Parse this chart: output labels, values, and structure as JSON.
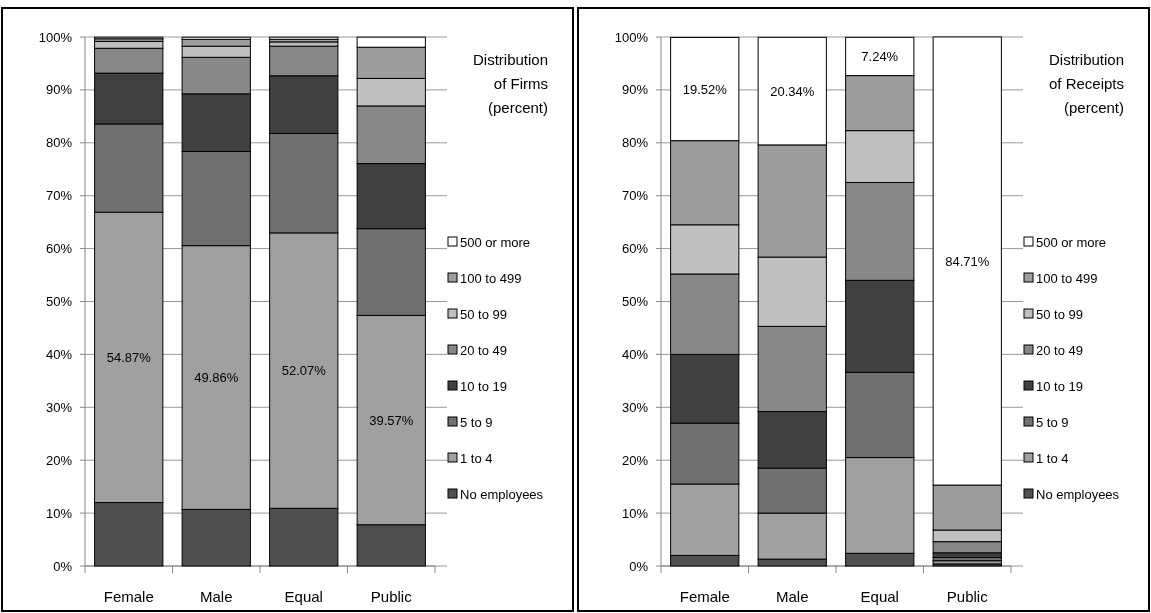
{
  "chart_data": [
    {
      "type": "bar",
      "legend_title": "Distribution\nof Firms\n(percent)",
      "stacked": true,
      "categories": [
        "Female",
        "Male",
        "Equal",
        "Public"
      ],
      "ylim": [
        0,
        100
      ],
      "yticks": [
        {
          "value": 0,
          "label": "0%"
        },
        {
          "value": 10,
          "label": "10%"
        },
        {
          "value": 20,
          "label": "20%"
        },
        {
          "value": 30,
          "label": "30%"
        },
        {
          "value": 40,
          "label": "40%"
        },
        {
          "value": 50,
          "label": "50%"
        },
        {
          "value": 60,
          "label": "60%"
        },
        {
          "value": 70,
          "label": "70%"
        },
        {
          "value": 80,
          "label": "80%"
        },
        {
          "value": 90,
          "label": "90%"
        },
        {
          "value": 100,
          "label": "100%"
        }
      ],
      "grid": "y",
      "legend": "right",
      "series": [
        {
          "name": "No employees",
          "color": "#505050",
          "values": [
            12.0,
            10.7,
            10.9,
            7.8
          ]
        },
        {
          "name": "1 to 4",
          "color": "#a0a0a0",
          "values": [
            54.87,
            49.86,
            52.07,
            39.57
          ],
          "value_labels": [
            "54.87%",
            "49.86%",
            "52.07%",
            "39.57%"
          ]
        },
        {
          "name": "5 to 9",
          "color": "#707070",
          "values": [
            16.7,
            17.8,
            18.8,
            16.4
          ]
        },
        {
          "name": "10 to 19",
          "color": "#404040",
          "values": [
            9.6,
            10.9,
            10.9,
            12.3
          ]
        },
        {
          "name": "20 to 49",
          "color": "#888888",
          "values": [
            4.7,
            6.9,
            5.6,
            10.9
          ]
        },
        {
          "name": "50 to 99",
          "color": "#c0c0c0",
          "values": [
            1.3,
            2.1,
            0.8,
            5.2
          ]
        },
        {
          "name": "100 to 499",
          "color": "#9d9d9d",
          "values": [
            0.5,
            1.3,
            0.5,
            5.9
          ]
        },
        {
          "name": "500 or more",
          "color": "#ffffff",
          "values": [
            0.3,
            0.4,
            0.4,
            1.9
          ]
        }
      ]
    },
    {
      "type": "bar",
      "legend_title": "Distribution\nof Receipts\n(percent)",
      "stacked": true,
      "categories": [
        "Female",
        "Male",
        "Equal",
        "Public"
      ],
      "ylim": [
        0,
        100
      ],
      "yticks": [
        {
          "value": 0,
          "label": "0%"
        },
        {
          "value": 10,
          "label": "10%"
        },
        {
          "value": 20,
          "label": "20%"
        },
        {
          "value": 30,
          "label": "30%"
        },
        {
          "value": 40,
          "label": "40%"
        },
        {
          "value": 50,
          "label": "50%"
        },
        {
          "value": 60,
          "label": "60%"
        },
        {
          "value": 70,
          "label": "70%"
        },
        {
          "value": 80,
          "label": "80%"
        },
        {
          "value": 90,
          "label": "90%"
        },
        {
          "value": 100,
          "label": "100%"
        }
      ],
      "grid": "y",
      "legend": "right",
      "series": [
        {
          "name": "No employees",
          "color": "#505050",
          "values": [
            2.0,
            1.3,
            2.4,
            0.4
          ]
        },
        {
          "name": "1 to 4",
          "color": "#a0a0a0",
          "values": [
            13.5,
            8.7,
            18.1,
            0.6
          ]
        },
        {
          "name": "5 to 9",
          "color": "#707070",
          "values": [
            11.5,
            8.5,
            16.1,
            0.6
          ]
        },
        {
          "name": "10 to 19",
          "color": "#404040",
          "values": [
            13.0,
            10.7,
            17.4,
            0.9
          ]
        },
        {
          "name": "20 to 49",
          "color": "#888888",
          "values": [
            15.2,
            16.1,
            18.5,
            2.1
          ]
        },
        {
          "name": "50 to 99",
          "color": "#c0c0c0",
          "values": [
            9.3,
            13.1,
            9.8,
            2.2
          ]
        },
        {
          "name": "100 to 499",
          "color": "#9d9d9d",
          "values": [
            15.9,
            21.2,
            10.4,
            8.5
          ]
        },
        {
          "name": "500 or more",
          "color": "#ffffff",
          "values": [
            19.52,
            20.34,
            7.24,
            84.71
          ],
          "value_labels": [
            "19.52%",
            "20.34%",
            "7.24%",
            "84.71%"
          ]
        }
      ]
    }
  ]
}
